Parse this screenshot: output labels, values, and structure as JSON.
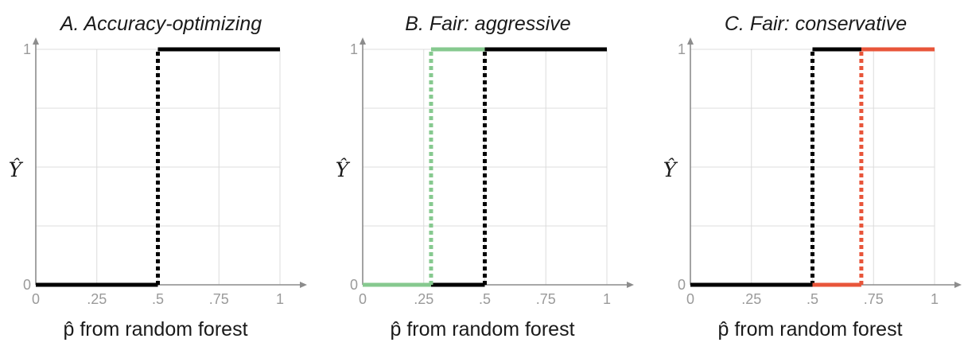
{
  "chart_data": [
    {
      "type": "line",
      "title": "A. Accuracy-optimizing",
      "xlabel": "p̂ from random forest",
      "ylabel": "Ŷ",
      "xlim": [
        0,
        1
      ],
      "ylim": [
        0,
        1
      ],
      "x_ticks": [
        "0",
        ".25",
        ".5",
        ".75",
        "1"
      ],
      "y_ticks": [
        "0",
        "1"
      ],
      "grid": true,
      "series": [
        {
          "color": "#000000",
          "threshold": 0.5,
          "points": [
            [
              0,
              0
            ],
            [
              0.5,
              0
            ],
            [
              0.5,
              1
            ],
            [
              1,
              1
            ]
          ]
        }
      ]
    },
    {
      "type": "line",
      "title": "B. Fair: aggressive",
      "xlabel": "p̂ from random forest",
      "ylabel": "Ŷ",
      "xlim": [
        0,
        1
      ],
      "ylim": [
        0,
        1
      ],
      "x_ticks": [
        "0",
        ".25",
        ".5",
        ".75",
        "1"
      ],
      "y_ticks": [
        "0",
        "1"
      ],
      "grid": true,
      "series": [
        {
          "color": "#000000",
          "threshold": 0.5,
          "points": [
            [
              0,
              0
            ],
            [
              0.5,
              0
            ],
            [
              0.5,
              1
            ],
            [
              1,
              1
            ]
          ]
        },
        {
          "color": "#86c98f",
          "threshold": 0.28,
          "points": [
            [
              0,
              0
            ],
            [
              0.28,
              0
            ],
            [
              0.28,
              1
            ],
            [
              0.5,
              1
            ]
          ]
        }
      ]
    },
    {
      "type": "line",
      "title": "C. Fair: conservative",
      "xlabel": "p̂ from random forest",
      "ylabel": "Ŷ",
      "xlim": [
        0,
        1
      ],
      "ylim": [
        0,
        1
      ],
      "x_ticks": [
        "0",
        ".25",
        ".5",
        ".75",
        "1"
      ],
      "y_ticks": [
        "0",
        "1"
      ],
      "grid": true,
      "series": [
        {
          "color": "#000000",
          "threshold": 0.5,
          "points": [
            [
              0,
              0
            ],
            [
              0.5,
              0
            ],
            [
              0.5,
              1
            ],
            [
              1,
              1
            ]
          ]
        },
        {
          "color": "#e8553a",
          "threshold": 0.7,
          "points": [
            [
              0.5,
              0
            ],
            [
              0.7,
              0
            ],
            [
              0.7,
              1
            ],
            [
              1,
              1
            ]
          ]
        }
      ]
    }
  ]
}
